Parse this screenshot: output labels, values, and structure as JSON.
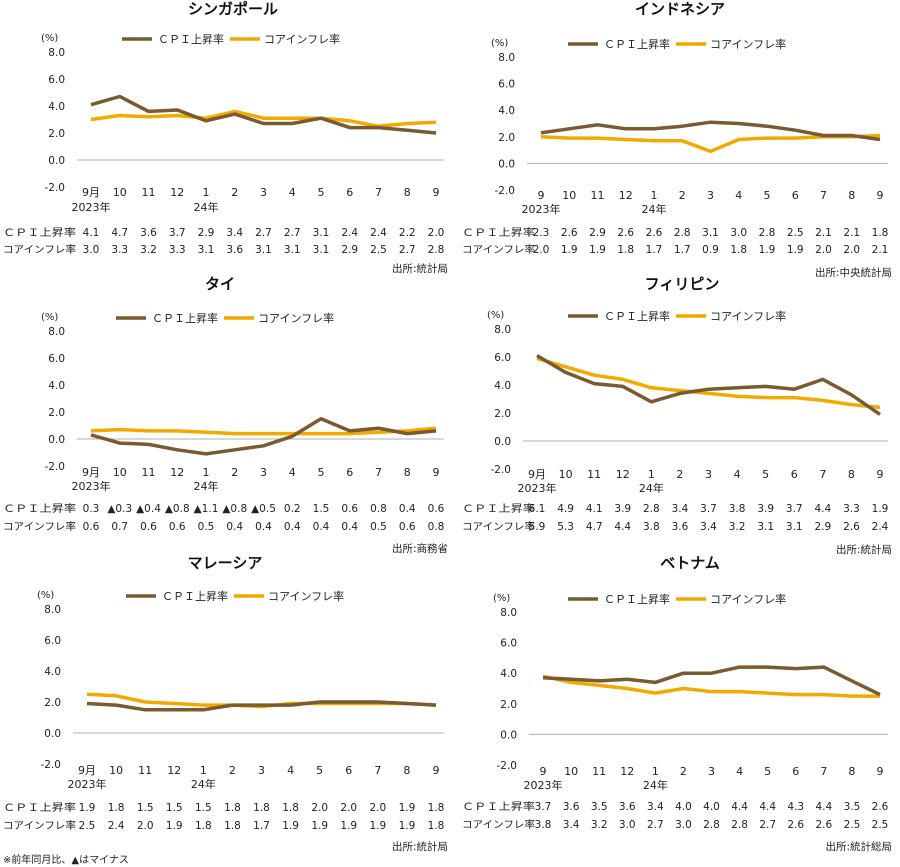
{
  "colors": {
    "cpi": "#7a5a2e",
    "core": "#f2a900",
    "axis_zero": "#b0b0b0",
    "text": "#222222"
  },
  "legend": {
    "cpi": "ＣＰＩ上昇率",
    "core": "コアインフレ率"
  },
  "row_labels": {
    "cpi": "ＣＰＩ上昇率",
    "core": "コアインフレ率"
  },
  "footnote": "※前年同月比、▲はマイナス",
  "chart_data": [
    {
      "type": "line",
      "title": "シンガポール",
      "ylabel": "(%)",
      "ylim": [
        -2,
        8
      ],
      "yticks": [
        "8.0",
        "6.0",
        "4.0",
        "2.0",
        "0.0",
        "-2.0"
      ],
      "categories": [
        "9月",
        "10",
        "11",
        "12",
        "1",
        "2",
        "3",
        "4",
        "5",
        "6",
        "7",
        "8",
        "9"
      ],
      "year_labels": [
        {
          "index": 0,
          "text": "2023年"
        },
        {
          "index": 4,
          "text": "24年"
        }
      ],
      "series": [
        {
          "name": "ＣＰＩ上昇率",
          "values": [
            4.1,
            4.7,
            3.6,
            3.7,
            2.9,
            3.4,
            2.7,
            2.7,
            3.1,
            2.4,
            2.4,
            2.2,
            2.0
          ],
          "labels": [
            "4.1",
            "4.7",
            "3.6",
            "3.7",
            "2.9",
            "3.4",
            "2.7",
            "2.7",
            "3.1",
            "2.4",
            "2.4",
            "2.2",
            "2.0"
          ]
        },
        {
          "name": "コアインフレ率",
          "values": [
            3.0,
            3.3,
            3.2,
            3.3,
            3.1,
            3.6,
            3.1,
            3.1,
            3.1,
            2.9,
            2.5,
            2.7,
            2.8
          ],
          "labels": [
            "3.0",
            "3.3",
            "3.2",
            "3.3",
            "3.1",
            "3.6",
            "3.1",
            "3.1",
            "3.1",
            "2.9",
            "2.5",
            "2.7",
            "2.8"
          ]
        }
      ],
      "source": "出所:統計局"
    },
    {
      "type": "line",
      "title": "インドネシア",
      "ylabel": "(%)",
      "ylim": [
        -2,
        8
      ],
      "yticks": [
        "8.0",
        "6.0",
        "4.0",
        "2.0",
        "0.0",
        "-2.0"
      ],
      "categories": [
        "9",
        "10",
        "11",
        "12",
        "1",
        "2",
        "3",
        "4",
        "5",
        "6",
        "7",
        "8",
        "9"
      ],
      "year_labels": [
        {
          "index": 0,
          "text": "2023年"
        },
        {
          "index": 4,
          "text": "24年"
        }
      ],
      "series": [
        {
          "name": "ＣＰＩ上昇率",
          "values": [
            2.3,
            2.6,
            2.9,
            2.6,
            2.6,
            2.8,
            3.1,
            3.0,
            2.8,
            2.5,
            2.1,
            2.1,
            1.8
          ],
          "labels": [
            "2.3",
            "2.6",
            "2.9",
            "2.6",
            "2.6",
            "2.8",
            "3.1",
            "3.0",
            "2.8",
            "2.5",
            "2.1",
            "2.1",
            "1.8"
          ]
        },
        {
          "name": "コアインフレ率",
          "values": [
            2.0,
            1.9,
            1.9,
            1.8,
            1.7,
            1.7,
            0.9,
            1.8,
            1.9,
            1.9,
            2.0,
            2.0,
            2.1
          ],
          "labels": [
            "2.0",
            "1.9",
            "1.9",
            "1.8",
            "1.7",
            "1.7",
            "0.9",
            "1.8",
            "1.9",
            "1.9",
            "2.0",
            "2.0",
            "2.1"
          ]
        }
      ],
      "source": "出所:中央統計局"
    },
    {
      "type": "line",
      "title": "タイ",
      "ylabel": "(%)",
      "ylim": [
        -2,
        8
      ],
      "yticks": [
        "8.0",
        "6.0",
        "4.0",
        "2.0",
        "0.0",
        "-2.0"
      ],
      "categories": [
        "9月",
        "10",
        "11",
        "12",
        "1",
        "2",
        "3",
        "4",
        "5",
        "6",
        "7",
        "8",
        "9"
      ],
      "year_labels": [
        {
          "index": 0,
          "text": "2023年"
        },
        {
          "index": 4,
          "text": "24年"
        }
      ],
      "series": [
        {
          "name": "ＣＰＩ上昇率",
          "values": [
            0.3,
            -0.3,
            -0.4,
            -0.8,
            -1.1,
            -0.8,
            -0.5,
            0.2,
            1.5,
            0.6,
            0.8,
            0.4,
            0.6
          ],
          "labels": [
            "0.3",
            "▲0.3",
            "▲0.4",
            "▲0.8",
            "▲1.1",
            "▲0.8",
            "▲0.5",
            "0.2",
            "1.5",
            "0.6",
            "0.8",
            "0.4",
            "0.6"
          ]
        },
        {
          "name": "コアインフレ率",
          "values": [
            0.6,
            0.7,
            0.6,
            0.6,
            0.5,
            0.4,
            0.4,
            0.4,
            0.4,
            0.4,
            0.5,
            0.6,
            0.8
          ],
          "labels": [
            "0.6",
            "0.7",
            "0.6",
            "0.6",
            "0.5",
            "0.4",
            "0.4",
            "0.4",
            "0.4",
            "0.4",
            "0.5",
            "0.6",
            "0.8"
          ]
        }
      ],
      "source": "出所:商務省"
    },
    {
      "type": "line",
      "title": "フィリピン",
      "ylabel": "(%)",
      "ylim": [
        -2,
        8
      ],
      "yticks": [
        "8.0",
        "6.0",
        "4.0",
        "2.0",
        "0.0",
        "-2.0"
      ],
      "categories": [
        "9月",
        "10",
        "11",
        "12",
        "1",
        "2",
        "3",
        "4",
        "5",
        "6",
        "7",
        "8",
        "9"
      ],
      "year_labels": [
        {
          "index": 0,
          "text": "2023年"
        },
        {
          "index": 4,
          "text": "24年"
        }
      ],
      "series": [
        {
          "name": "ＣＰＩ上昇率",
          "values": [
            6.1,
            4.9,
            4.1,
            3.9,
            2.8,
            3.4,
            3.7,
            3.8,
            3.9,
            3.7,
            4.4,
            3.3,
            1.9
          ],
          "labels": [
            "6.1",
            "4.9",
            "4.1",
            "3.9",
            "2.8",
            "3.4",
            "3.7",
            "3.8",
            "3.9",
            "3.7",
            "4.4",
            "3.3",
            "1.9"
          ]
        },
        {
          "name": "コアインフレ率",
          "values": [
            5.9,
            5.3,
            4.7,
            4.4,
            3.8,
            3.6,
            3.4,
            3.2,
            3.1,
            3.1,
            2.9,
            2.6,
            2.4
          ],
          "labels": [
            "5.9",
            "5.3",
            "4.7",
            "4.4",
            "3.8",
            "3.6",
            "3.4",
            "3.2",
            "3.1",
            "3.1",
            "2.9",
            "2.6",
            "2.4"
          ]
        }
      ],
      "source": "出所:統計局"
    },
    {
      "type": "line",
      "title": "マレーシア",
      "ylabel": "(%)",
      "ylim": [
        -2,
        8
      ],
      "yticks": [
        "8.0",
        "6.0",
        "4.0",
        "2.0",
        "0.0",
        "-2.0"
      ],
      "categories": [
        "9月",
        "10",
        "11",
        "12",
        "1",
        "2",
        "3",
        "4",
        "5",
        "6",
        "7",
        "8",
        "9"
      ],
      "year_labels": [
        {
          "index": 0,
          "text": "2023年"
        },
        {
          "index": 4,
          "text": "24年"
        }
      ],
      "series": [
        {
          "name": "ＣＰＩ上昇率",
          "values": [
            1.9,
            1.8,
            1.5,
            1.5,
            1.5,
            1.8,
            1.8,
            1.8,
            2.0,
            2.0,
            2.0,
            1.9,
            1.8
          ],
          "labels": [
            "1.9",
            "1.8",
            "1.5",
            "1.5",
            "1.5",
            "1.8",
            "1.8",
            "1.8",
            "2.0",
            "2.0",
            "2.0",
            "1.9",
            "1.8"
          ]
        },
        {
          "name": "コアインフレ率",
          "values": [
            2.5,
            2.4,
            2.0,
            1.9,
            1.8,
            1.8,
            1.7,
            1.9,
            1.9,
            1.9,
            1.9,
            1.9,
            1.8
          ],
          "labels": [
            "2.5",
            "2.4",
            "2.0",
            "1.9",
            "1.8",
            "1.8",
            "1.7",
            "1.9",
            "1.9",
            "1.9",
            "1.9",
            "1.9",
            "1.8"
          ]
        }
      ],
      "source": "出所:統計局"
    },
    {
      "type": "line",
      "title": "ベトナム",
      "ylabel": "(%)",
      "ylim": [
        -2,
        8
      ],
      "yticks": [
        "8.0",
        "6.0",
        "4.0",
        "2.0",
        "0.0",
        "-2.0"
      ],
      "categories": [
        "9",
        "10",
        "11",
        "12",
        "1",
        "2",
        "3",
        "4",
        "5",
        "6",
        "7",
        "8",
        "9"
      ],
      "year_labels": [
        {
          "index": 0,
          "text": "2023年"
        },
        {
          "index": 4,
          "text": "24年"
        }
      ],
      "series": [
        {
          "name": "ＣＰＩ上昇率",
          "values": [
            3.7,
            3.6,
            3.5,
            3.6,
            3.4,
            4.0,
            4.0,
            4.4,
            4.4,
            4.3,
            4.4,
            3.5,
            2.6
          ],
          "labels": [
            "3.7",
            "3.6",
            "3.5",
            "3.6",
            "3.4",
            "4.0",
            "4.0",
            "4.4",
            "4.4",
            "4.3",
            "4.4",
            "3.5",
            "2.6"
          ]
        },
        {
          "name": "コアインフレ率",
          "values": [
            3.8,
            3.4,
            3.2,
            3.0,
            2.7,
            3.0,
            2.8,
            2.8,
            2.7,
            2.6,
            2.6,
            2.5,
            2.5
          ],
          "labels": [
            "3.8",
            "3.4",
            "3.2",
            "3.0",
            "2.7",
            "3.0",
            "2.8",
            "2.8",
            "2.7",
            "2.6",
            "2.6",
            "2.5",
            "2.5"
          ]
        }
      ],
      "source": "出所:統計総局"
    }
  ]
}
